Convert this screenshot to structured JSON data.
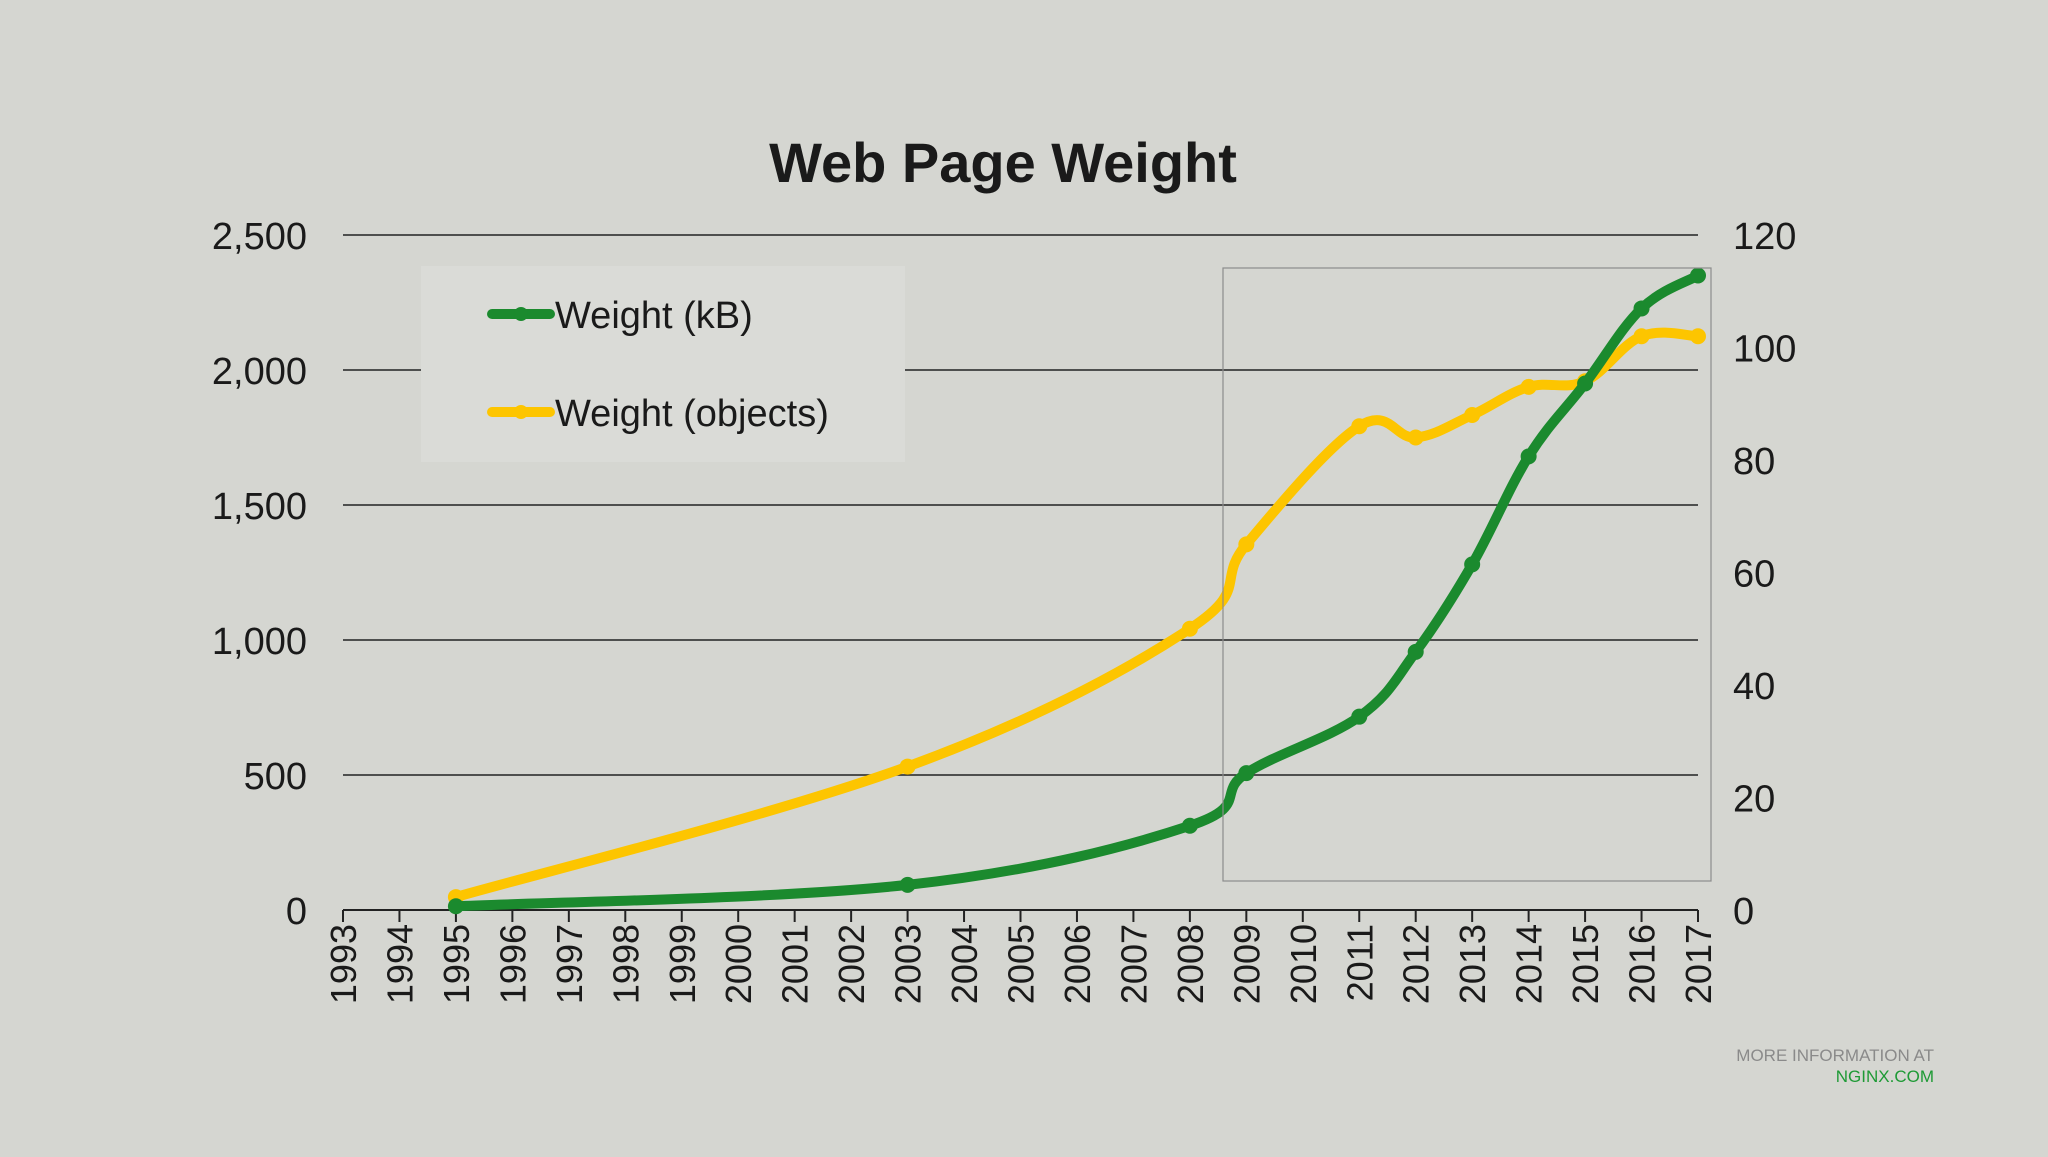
{
  "chart_data": {
    "type": "line",
    "title": "Web Page Weight",
    "x": [
      1993,
      1994,
      1995,
      1996,
      1997,
      1998,
      1999,
      2000,
      2001,
      2002,
      2003,
      2004,
      2005,
      2006,
      2007,
      2008,
      2009,
      2010,
      2011,
      2012,
      2013,
      2014,
      2015,
      2016,
      2017
    ],
    "xlabels": [
      "1993",
      "1994",
      "1995",
      "1996",
      "1997",
      "1998",
      "1999",
      "2000",
      "2001",
      "2002",
      "2003",
      "2004",
      "2005",
      "2006",
      "2007",
      "2008",
      "2009",
      "2010",
      "2011",
      "2012",
      "2013",
      "2014",
      "2015",
      "2016",
      "2017"
    ],
    "series": [
      {
        "name": "Weight (kB)",
        "axis": "left",
        "color": "#1b8a2e",
        "points": [
          [
            1995,
            14
          ],
          [
            2003,
            93
          ],
          [
            2008,
            312
          ],
          [
            2009,
            507
          ],
          [
            2011,
            716
          ],
          [
            2012,
            956
          ],
          [
            2013,
            1280
          ],
          [
            2014,
            1680
          ],
          [
            2015,
            1950
          ],
          [
            2016,
            2228
          ],
          [
            2017,
            2350
          ]
        ]
      },
      {
        "name": "Weight (objects)",
        "axis": "right",
        "color": "#fdc500",
        "points": [
          [
            1995,
            2.3
          ],
          [
            2003,
            25.5
          ],
          [
            2008,
            50
          ],
          [
            2009,
            65
          ],
          [
            2011,
            86
          ],
          [
            2012,
            84
          ],
          [
            2013,
            88
          ],
          [
            2014,
            93
          ],
          [
            2015,
            94
          ],
          [
            2016,
            102
          ],
          [
            2017,
            102
          ]
        ]
      }
    ],
    "yleft": {
      "ylim": [
        0,
        2500
      ],
      "ticks": [
        0,
        500,
        1000,
        1500,
        2000,
        2500
      ],
      "ticklabels": [
        "0",
        "500",
        "1,000",
        "1,500",
        "2,000",
        "2,500"
      ]
    },
    "yright": {
      "ylim": [
        0,
        120
      ],
      "ticks": [
        0,
        20,
        40,
        60,
        80,
        100,
        120
      ],
      "ticklabels": [
        "0",
        "20",
        "40",
        "60",
        "80",
        "100",
        "120"
      ]
    },
    "grid": true,
    "legend_position": "top-left"
  },
  "footer": {
    "line1": "MORE INFORMATION AT",
    "line2": "NGINX.COM"
  }
}
